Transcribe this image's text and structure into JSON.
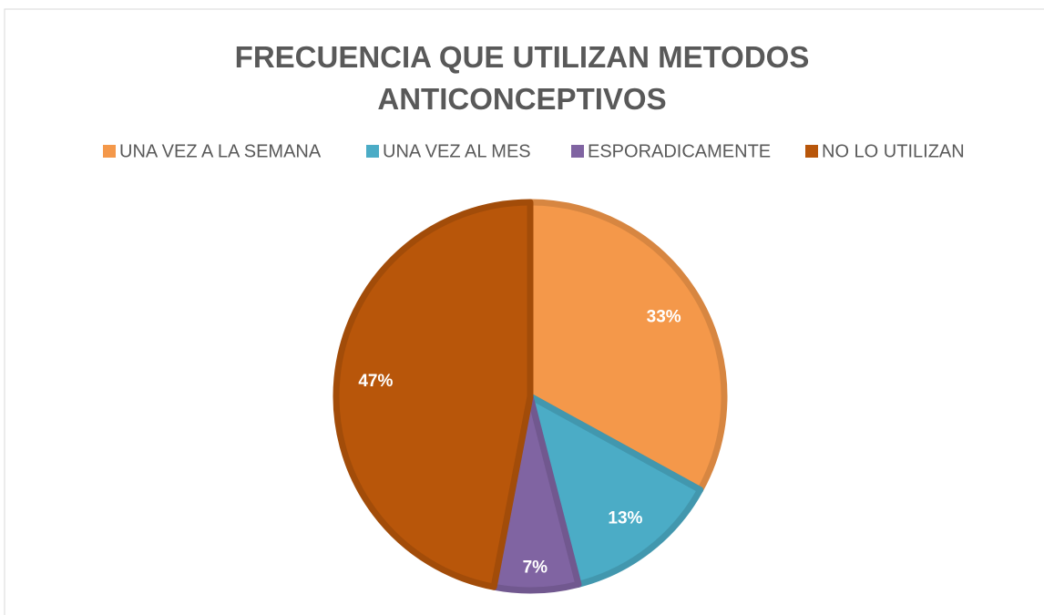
{
  "chart_data": {
    "type": "pie",
    "title": "FRECUENCIA QUE UTILIZAN METODOS ANTICONCEPTIVOS",
    "categories": [
      "UNA VEZ A LA SEMANA",
      "UNA VEZ AL MES",
      "ESPORADICAMENTE",
      "NO LO UTILIZAN"
    ],
    "values": [
      33,
      13,
      7,
      47
    ],
    "value_labels": [
      "33%",
      "13%",
      "7%",
      "47%"
    ],
    "colors": [
      "#f4984a",
      "#4bacc6",
      "#8064a2",
      "#b8560a"
    ],
    "legend": "top"
  }
}
